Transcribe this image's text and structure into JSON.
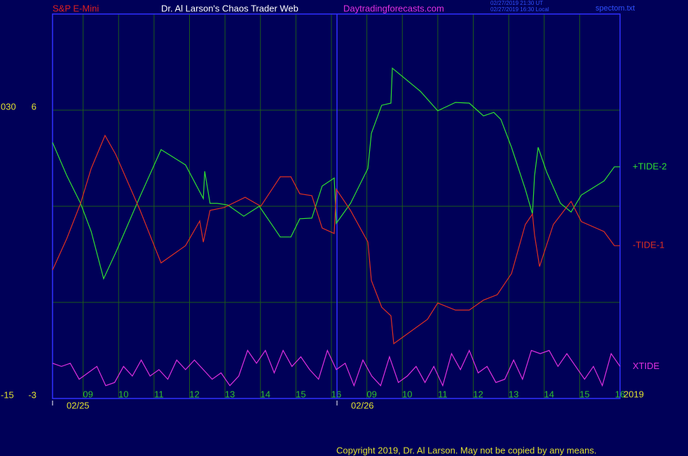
{
  "chart_data": {
    "type": "line",
    "header": {
      "symbol": "S&P E-Mini",
      "site": "Dr. Al Larson's Chaos Trader Web",
      "url": "Daytradingforecasts.com",
      "time_ut": "02/27/2019 21:30 UT",
      "time_local": "02/27/2019 16:30 Local",
      "file": "spectom.txt"
    },
    "copyright": "Copyright 2019, Dr. Al Larson. May not be copied by any means.",
    "year": "2019",
    "date_labels": [
      "02/25",
      "02/26"
    ],
    "xlim": [
      0,
      16
    ],
    "xticks": [
      {
        "value": 1,
        "label": "09"
      },
      {
        "value": 2,
        "label": "10"
      },
      {
        "value": 3,
        "label": "11"
      },
      {
        "value": 4,
        "label": "12"
      },
      {
        "value": 5,
        "label": "13"
      },
      {
        "value": 6,
        "label": "14"
      },
      {
        "value": 7,
        "label": "15"
      },
      {
        "value": 8,
        "label": "16"
      },
      {
        "value": 9,
        "label": "09"
      },
      {
        "value": 10,
        "label": "10"
      },
      {
        "value": 11,
        "label": "11"
      },
      {
        "value": 12,
        "label": "12"
      },
      {
        "value": 13,
        "label": "13"
      },
      {
        "value": 14,
        "label": "14"
      },
      {
        "value": 15,
        "label": "15"
      },
      {
        "value": 16,
        "label": "16"
      }
    ],
    "ylim": [
      -3,
      9
    ],
    "yticks": [
      -3,
      {
        "value": 0,
        "label": null
      },
      {
        "value": 3,
        "label": null
      },
      6
    ],
    "y2lim": [
      -15,
      45
    ],
    "y2ticks": [
      -15,
      {
        "value": 30,
        "label": "030"
      }
    ],
    "grid": true,
    "series": [
      {
        "name": "+TIDE-2",
        "color": "#30e030",
        "x": [
          0,
          0.4,
          0.79,
          1.09,
          1.44,
          1.78,
          2.47,
          3.06,
          3.75,
          4.25,
          4.29,
          4.44,
          4.64,
          4.94,
          5.39,
          5.83,
          6.42,
          6.72,
          6.97,
          7.31,
          7.6,
          7.94,
          8.0,
          8.4,
          8.89,
          8.99,
          9.28,
          9.54,
          9.58,
          10.37,
          10.86,
          11.36,
          11.75,
          12.15,
          12.44,
          12.64,
          12.94,
          13.33,
          13.53,
          13.59,
          13.69,
          13.93,
          14.32,
          14.62,
          14.91,
          15.55,
          15.84,
          16
        ],
        "values": [
          4.99,
          3.96,
          3.09,
          2.21,
          0.74,
          1.55,
          3.31,
          4.77,
          4.29,
          3.24,
          4.09,
          3.09,
          3.09,
          3.04,
          2.69,
          3.0,
          2.04,
          2.04,
          2.61,
          2.63,
          3.63,
          3.88,
          2.47,
          3.09,
          4.18,
          5.28,
          6.15,
          6.22,
          7.31,
          6.59,
          5.98,
          6.24,
          6.22,
          5.82,
          5.93,
          5.71,
          4.84,
          3.53,
          2.76,
          3.96,
          4.84,
          4.07,
          3.09,
          2.82,
          3.35,
          3.79,
          4.23,
          4.23
        ]
      },
      {
        "name": "-TIDE-1",
        "color": "#e03020",
        "x": [
          0,
          0.4,
          0.79,
          1.09,
          1.48,
          1.78,
          2.47,
          3.06,
          3.75,
          4.15,
          4.25,
          4.44,
          4.84,
          5.43,
          5.87,
          6.42,
          6.72,
          6.97,
          7.31,
          7.6,
          7.94,
          8.0,
          8.4,
          8.89,
          8.99,
          9.28,
          9.54,
          9.62,
          10.57,
          10.86,
          11.36,
          11.75,
          12.15,
          12.54,
          12.94,
          13.33,
          13.53,
          13.59,
          13.73,
          14.12,
          14.62,
          14.91,
          15.55,
          15.84,
          16
        ],
        "values": [
          1.01,
          1.99,
          3.09,
          4.18,
          5.21,
          4.62,
          2.87,
          1.23,
          1.77,
          2.54,
          1.88,
          2.87,
          2.96,
          3.28,
          3.0,
          3.92,
          3.92,
          3.39,
          3.33,
          2.32,
          2.15,
          3.53,
          2.87,
          1.88,
          0.68,
          -0.15,
          -0.42,
          -1.29,
          -0.53,
          -0.02,
          -0.24,
          -0.24,
          0.07,
          0.24,
          0.9,
          2.43,
          2.76,
          2.1,
          1.12,
          2.43,
          3.15,
          2.52,
          2.21,
          1.77,
          1.77
        ]
      },
      {
        "name": "XTIDE",
        "color": "#e030e0",
        "x": [
          0,
          0.25,
          0.5,
          0.75,
          1,
          1.25,
          1.5,
          1.75,
          2,
          2.25,
          2.5,
          2.75,
          3,
          3.25,
          3.5,
          3.75,
          4,
          4.25,
          4.5,
          4.75,
          5,
          5.25,
          5.5,
          5.75,
          6,
          6.25,
          6.5,
          6.75,
          7,
          7.25,
          7.5,
          7.75,
          8,
          8.25,
          8.5,
          8.75,
          9,
          9.25,
          9.5,
          9.75,
          10,
          10.25,
          10.5,
          10.75,
          11,
          11.25,
          11.5,
          11.75,
          12,
          12.25,
          12.5,
          12.75,
          13,
          13.25,
          13.5,
          13.75,
          14,
          14.25,
          14.5,
          14.75,
          15,
          15.25,
          15.5,
          15.75,
          16
        ],
        "values": [
          -1.9,
          -2.0,
          -1.9,
          -2.4,
          -2.2,
          -2.0,
          -2.6,
          -2.5,
          -2.0,
          -2.3,
          -1.8,
          -2.3,
          -2.1,
          -2.4,
          -1.8,
          -2.1,
          -1.8,
          -2.1,
          -2.4,
          -2.2,
          -2.6,
          -2.3,
          -1.5,
          -1.9,
          -1.5,
          -2.2,
          -1.5,
          -2.0,
          -1.7,
          -2.1,
          -2.4,
          -1.5,
          -2.1,
          -1.9,
          -2.6,
          -1.8,
          -2.3,
          -2.6,
          -1.7,
          -2.5,
          -2.3,
          -2.0,
          -2.5,
          -2.0,
          -2.6,
          -1.6,
          -2.1,
          -1.5,
          -2.2,
          -2.0,
          -2.5,
          -2.4,
          -1.8,
          -2.4,
          -1.5,
          -1.6,
          -1.5,
          -2.0,
          -1.6,
          -2.0,
          -2.4,
          -2.0,
          -2.6,
          -1.6,
          -2.0
        ]
      }
    ]
  }
}
